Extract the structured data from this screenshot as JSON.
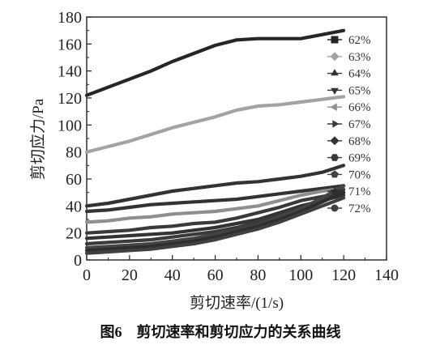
{
  "chart_data": {
    "type": "line",
    "xlabel": "剪切速率/(1/s)",
    "ylabel": "剪切应力/Pa",
    "xlim": [
      0,
      140
    ],
    "ylim": [
      0,
      180
    ],
    "xticks": [
      0,
      20,
      40,
      60,
      80,
      100,
      120,
      140
    ],
    "yticks": [
      0,
      20,
      40,
      60,
      80,
      100,
      120,
      140,
      160,
      180
    ],
    "grid": false,
    "legend_position": "right",
    "x": [
      0,
      10,
      20,
      30,
      40,
      50,
      60,
      70,
      80,
      90,
      100,
      110,
      120
    ],
    "series": [
      {
        "name": "62%",
        "color": "#262626",
        "marker": "square",
        "values": [
          122,
          128,
          134,
          140,
          147,
          153,
          159,
          163,
          164,
          164,
          164,
          167,
          170
        ]
      },
      {
        "name": "63%",
        "color": "#a3a3a3",
        "marker": "diamond",
        "values": [
          80,
          84,
          88,
          93,
          98,
          102,
          106,
          111,
          114,
          115,
          117,
          119,
          121
        ]
      },
      {
        "name": "64%",
        "color": "#333333",
        "marker": "triangle-up",
        "values": [
          40,
          42,
          45,
          48,
          51,
          53,
          55,
          57,
          58,
          60,
          62,
          65,
          70
        ]
      },
      {
        "name": "65%",
        "color": "#333333",
        "marker": "triangle-down",
        "values": [
          36,
          37,
          39,
          41,
          42,
          43,
          44,
          45,
          47,
          49,
          51,
          53,
          55
        ]
      },
      {
        "name": "66%",
        "color": "#8f8f8f",
        "marker": "triangle-left",
        "values": [
          28,
          29,
          31,
          32,
          34,
          35,
          36,
          38,
          40,
          44,
          48,
          51,
          53
        ]
      },
      {
        "name": "67%",
        "color": "#3a3a3a",
        "marker": "triangle-right",
        "values": [
          20,
          21,
          22,
          24,
          25,
          27,
          28,
          31,
          35,
          39,
          44,
          47,
          50
        ]
      },
      {
        "name": "68%",
        "color": "#333333",
        "marker": "diamond",
        "values": [
          16,
          17,
          18,
          19,
          20,
          22,
          24,
          27,
          30,
          35,
          40,
          44,
          48
        ]
      },
      {
        "name": "69%",
        "color": "#3a3a3a",
        "marker": "hexagon",
        "values": [
          12,
          13,
          14,
          15,
          17,
          19,
          21,
          24,
          28,
          33,
          38,
          45,
          52
        ]
      },
      {
        "name": "70%",
        "color": "#444444",
        "marker": "pentagon",
        "values": [
          9,
          10,
          11,
          12,
          14,
          16,
          19,
          22,
          26,
          32,
          38,
          46,
          55
        ]
      },
      {
        "name": "71%",
        "color": "#2e2e2e",
        "marker": "star",
        "values": [
          7,
          8,
          9,
          10,
          12,
          14,
          17,
          21,
          25,
          30,
          36,
          43,
          50
        ]
      },
      {
        "name": "72%",
        "color": "#404040",
        "marker": "circle",
        "values": [
          5,
          6,
          7,
          8,
          10,
          12,
          15,
          19,
          23,
          28,
          34,
          40,
          46
        ]
      }
    ]
  },
  "caption": {
    "figure_label": "图6",
    "text": "剪切速率和剪切应力的关系曲线"
  }
}
